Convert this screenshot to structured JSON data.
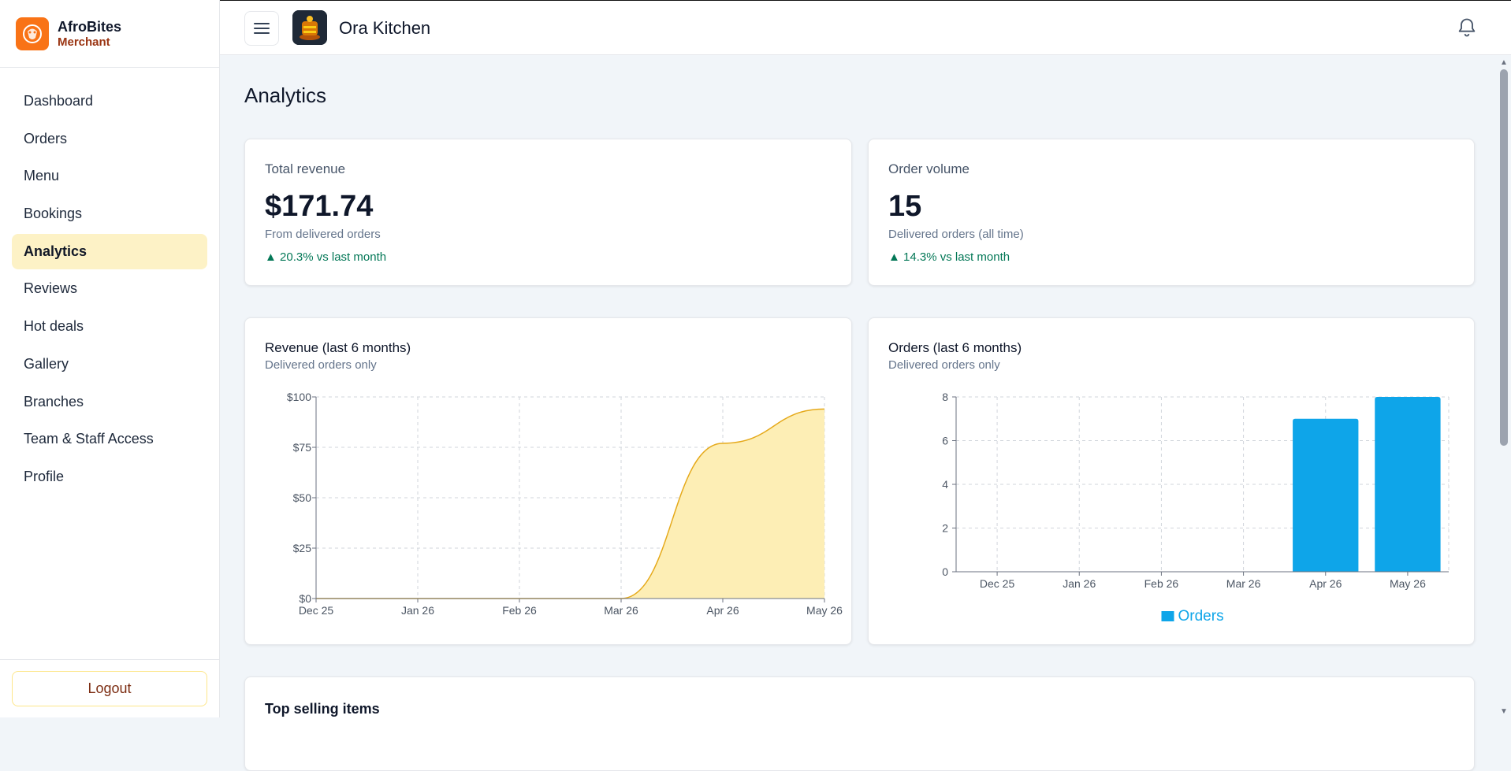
{
  "brand": {
    "name": "AfroBites",
    "sub": "Merchant"
  },
  "sidebar": {
    "items": [
      {
        "label": "Dashboard"
      },
      {
        "label": "Orders"
      },
      {
        "label": "Menu"
      },
      {
        "label": "Bookings"
      },
      {
        "label": "Analytics",
        "active": true
      },
      {
        "label": "Reviews"
      },
      {
        "label": "Hot deals"
      },
      {
        "label": "Gallery"
      },
      {
        "label": "Branches"
      },
      {
        "label": "Team & Staff Access"
      },
      {
        "label": "Profile"
      }
    ],
    "logout_label": "Logout"
  },
  "header": {
    "store_name": "Ora Kitchen"
  },
  "page": {
    "title": "Analytics"
  },
  "stats": {
    "revenue": {
      "label": "Total revenue",
      "value": "$171.74",
      "sub": "From delivered orders",
      "trend": "▲ 20.3% vs last month"
    },
    "orders": {
      "label": "Order volume",
      "value": "15",
      "sub": "Delivered orders (all time)",
      "trend": "▲ 14.3% vs last month"
    }
  },
  "charts": {
    "revenue": {
      "title": "Revenue (last 6 months)",
      "sub": "Delivered orders only"
    },
    "orders": {
      "title": "Orders (last 6 months)",
      "sub": "Delivered orders only"
    }
  },
  "top_selling": {
    "title": "Top selling items"
  },
  "colors": {
    "accent": "#f97316",
    "area_fill": "#fdeeb5",
    "area_stroke": "#e5a91a",
    "bar": "#0ea5e9",
    "trend_up": "#047857"
  },
  "chart_data": [
    {
      "type": "area",
      "x": [
        "Dec 25",
        "Jan 26",
        "Feb 26",
        "Mar 26",
        "Apr 26",
        "May 26"
      ],
      "series": [
        {
          "values": [
            0,
            0,
            0,
            0,
            77,
            94
          ]
        }
      ],
      "ytick_labels": [
        "$0",
        "$25",
        "$50",
        "$75",
        "$100"
      ],
      "ylim": [
        0,
        100
      ],
      "grid": true
    },
    {
      "type": "bar",
      "categories": [
        "Dec 25",
        "Jan 26",
        "Feb 26",
        "Mar 26",
        "Apr 26",
        "May 26"
      ],
      "series": [
        {
          "name": "Orders",
          "values": [
            0,
            0,
            0,
            0,
            7,
            8
          ]
        }
      ],
      "yticks": [
        0,
        2,
        4,
        6,
        8
      ],
      "ylim": [
        0,
        8
      ],
      "grid": true,
      "legend": "bottom"
    }
  ]
}
